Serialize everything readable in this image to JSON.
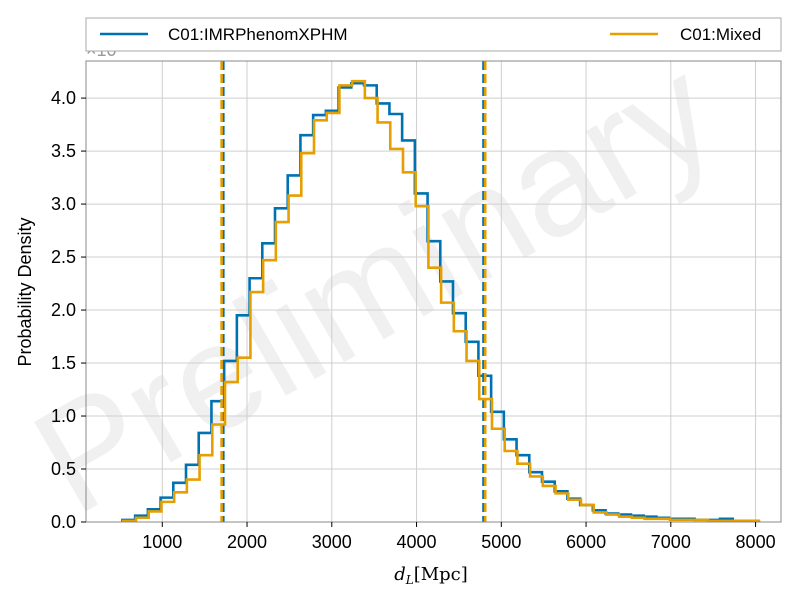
{
  "chart_data": {
    "type": "histogram",
    "xlabel": "d_L[Mpc]",
    "ylabel": "Probability Density",
    "y_multiplier_label": "×10⁻⁴",
    "watermark": "Preliminary",
    "xlim": [
      100,
      8300
    ],
    "ylim": [
      0,
      4.35
    ],
    "x_ticks": [
      1000,
      2000,
      3000,
      4000,
      5000,
      6000,
      7000,
      8000
    ],
    "y_ticks": [
      0.0,
      0.5,
      1.0,
      1.5,
      2.0,
      2.5,
      3.0,
      3.5,
      4.0
    ],
    "y_tick_labels": [
      "0.0",
      "0.5",
      "1.0",
      "1.5",
      "2.0",
      "2.5",
      "3.0",
      "3.5",
      "4.0"
    ],
    "grid": true,
    "legend_position": "top, spanning, above plot",
    "series": [
      {
        "name": "C01:IMRPhenomXPHM",
        "color": "#0072b2",
        "bin_edges": [
          530,
          680,
          830,
          980,
          1130,
          1280,
          1430,
          1580,
          1730,
          1880,
          2030,
          2180,
          2330,
          2480,
          2630,
          2780,
          2930,
          3080,
          3230,
          3380,
          3530,
          3680,
          3830,
          3980,
          4130,
          4280,
          4430,
          4580,
          4730,
          4880,
          5030,
          5180,
          5330,
          5480,
          5630,
          5780,
          5930,
          6080,
          6230,
          6380,
          6530,
          6680,
          6830,
          6980,
          7130,
          7280,
          7430,
          7580,
          7730,
          7880,
          8030
        ],
        "densities": [
          0.02,
          0.06,
          0.12,
          0.23,
          0.37,
          0.54,
          0.84,
          1.14,
          1.52,
          1.95,
          2.3,
          2.63,
          2.96,
          3.27,
          3.65,
          3.84,
          3.88,
          4.1,
          4.14,
          4.12,
          3.95,
          3.85,
          3.6,
          3.1,
          2.65,
          2.27,
          1.97,
          1.7,
          1.38,
          1.04,
          0.78,
          0.63,
          0.47,
          0.38,
          0.29,
          0.22,
          0.16,
          0.11,
          0.08,
          0.07,
          0.06,
          0.05,
          0.04,
          0.03,
          0.03,
          0.02,
          0.02,
          0.03,
          0.01,
          0.01
        ],
        "interval_lines": [
          1720,
          4790
        ]
      },
      {
        "name": "C01:Mixed",
        "color": "#e69f00",
        "bin_edges": [
          540,
          690,
          840,
          990,
          1140,
          1290,
          1440,
          1590,
          1740,
          1890,
          2040,
          2190,
          2340,
          2490,
          2640,
          2790,
          2940,
          3090,
          3240,
          3390,
          3540,
          3690,
          3840,
          3990,
          4140,
          4290,
          4440,
          4590,
          4740,
          4890,
          5040,
          5190,
          5340,
          5490,
          5640,
          5790,
          5940,
          6090,
          6240,
          6390,
          6540,
          6690,
          6840,
          6990,
          7140,
          7290,
          7440,
          7590,
          7740,
          7890,
          8040
        ],
        "densities": [
          0.01,
          0.04,
          0.1,
          0.19,
          0.28,
          0.4,
          0.63,
          0.92,
          1.32,
          1.55,
          2.17,
          2.47,
          2.83,
          3.08,
          3.48,
          3.79,
          3.86,
          4.12,
          4.16,
          4.0,
          3.77,
          3.52,
          3.3,
          2.98,
          2.4,
          2.07,
          1.8,
          1.52,
          1.16,
          0.88,
          0.67,
          0.55,
          0.43,
          0.34,
          0.27,
          0.21,
          0.16,
          0.09,
          0.07,
          0.05,
          0.04,
          0.03,
          0.03,
          0.02,
          0.02,
          0.02,
          0.01,
          0.01,
          0.01,
          0.01
        ],
        "interval_lines": [
          1700,
          4810
        ]
      }
    ]
  }
}
